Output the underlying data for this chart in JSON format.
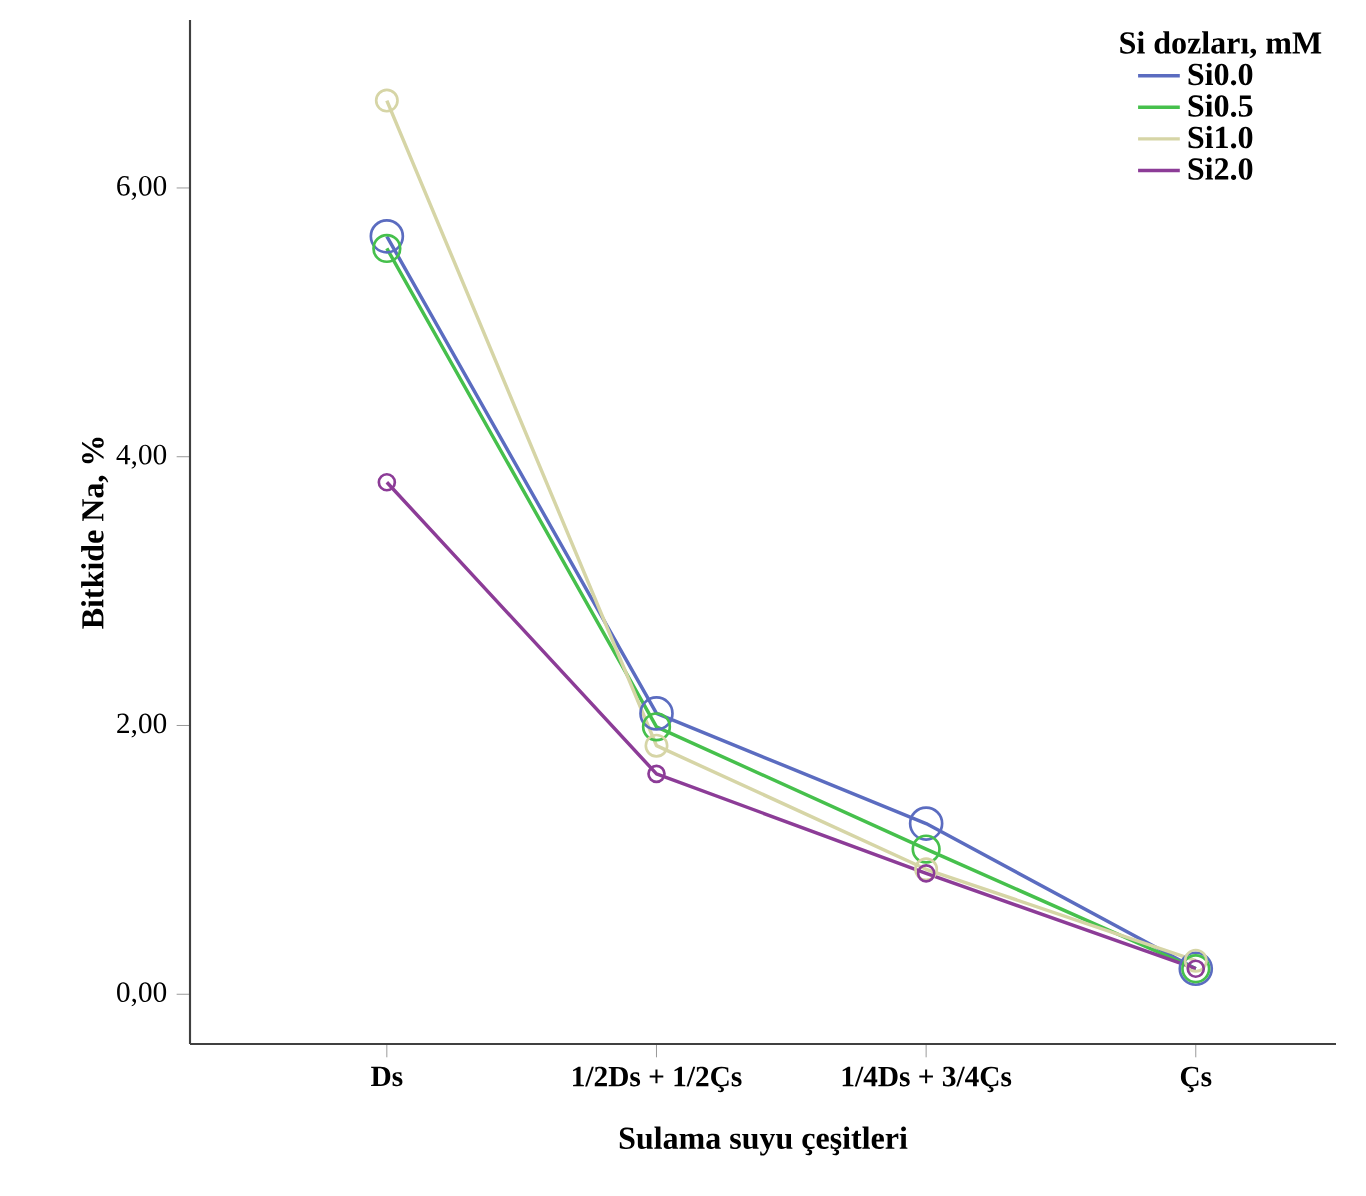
{
  "chart_data": {
    "type": "line",
    "xlabel": "Sulama suyu çeşitleri",
    "ylabel": "Bitkide Na, %",
    "legend_title": "Si dozları, mM",
    "categories": [
      "Ds",
      "1/2Ds + 1/2Çs",
      "1/4Ds + 3/4Çs",
      "Çs"
    ],
    "series": [
      {
        "name": "Si0.0",
        "color": "#5b6cc0",
        "values": [
          5.64,
          2.09,
          1.27,
          0.19
        ]
      },
      {
        "name": "Si0.5",
        "color": "#46c04c",
        "values": [
          5.55,
          1.99,
          1.08,
          0.19
        ]
      },
      {
        "name": "Si1.0",
        "color": "#d6d5a6",
        "values": [
          6.65,
          1.85,
          0.93,
          0.25
        ]
      },
      {
        "name": "Si2.0",
        "color": "#8c3c97",
        "values": [
          3.81,
          1.64,
          0.9,
          0.19
        ]
      }
    ],
    "ylim": [
      -0.37,
      7.25
    ],
    "yticks": [
      {
        "value": 0,
        "label": "0,00"
      },
      {
        "value": 2,
        "label": "2,00"
      },
      {
        "value": 4,
        "label": "4,00"
      },
      {
        "value": 6,
        "label": "6,00"
      }
    ],
    "grid": false,
    "legend": "top right",
    "marker": "circle",
    "line_style": "solid"
  }
}
